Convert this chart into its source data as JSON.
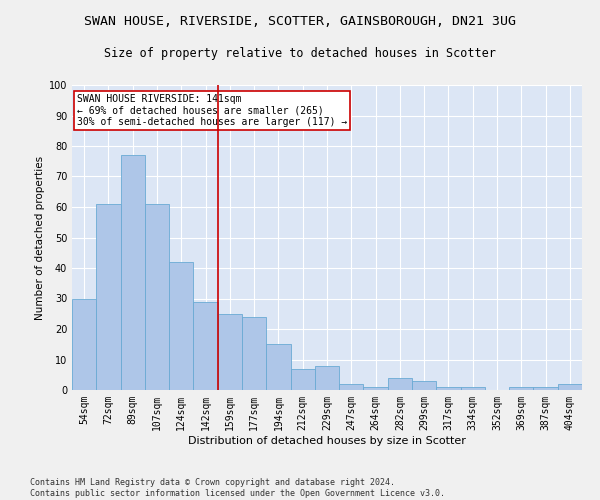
{
  "title": "SWAN HOUSE, RIVERSIDE, SCOTTER, GAINSBOROUGH, DN21 3UG",
  "subtitle": "Size of property relative to detached houses in Scotter",
  "xlabel": "Distribution of detached houses by size in Scotter",
  "ylabel": "Number of detached properties",
  "bar_color": "#aec6e8",
  "bar_edge_color": "#6aaad4",
  "background_color": "#dce6f5",
  "grid_color": "#ffffff",
  "fig_background": "#f0f0f0",
  "categories": [
    "54sqm",
    "72sqm",
    "89sqm",
    "107sqm",
    "124sqm",
    "142sqm",
    "159sqm",
    "177sqm",
    "194sqm",
    "212sqm",
    "229sqm",
    "247sqm",
    "264sqm",
    "282sqm",
    "299sqm",
    "317sqm",
    "334sqm",
    "352sqm",
    "369sqm",
    "387sqm",
    "404sqm"
  ],
  "values": [
    30,
    61,
    77,
    61,
    42,
    29,
    25,
    24,
    15,
    7,
    8,
    2,
    1,
    4,
    3,
    1,
    1,
    0,
    1,
    1,
    2
  ],
  "property_line_x": 5.5,
  "property_line_color": "#cc0000",
  "annotation_text": "SWAN HOUSE RIVERSIDE: 141sqm\n← 69% of detached houses are smaller (265)\n30% of semi-detached houses are larger (117) →",
  "annotation_box_color": "#ffffff",
  "annotation_box_edge": "#cc0000",
  "ylim": [
    0,
    100
  ],
  "yticks": [
    0,
    10,
    20,
    30,
    40,
    50,
    60,
    70,
    80,
    90,
    100
  ],
  "footnote": "Contains HM Land Registry data © Crown copyright and database right 2024.\nContains public sector information licensed under the Open Government Licence v3.0.",
  "title_fontsize": 9.5,
  "subtitle_fontsize": 8.5,
  "xlabel_fontsize": 8,
  "ylabel_fontsize": 7.5,
  "tick_fontsize": 7,
  "annotation_fontsize": 7,
  "footnote_fontsize": 6
}
